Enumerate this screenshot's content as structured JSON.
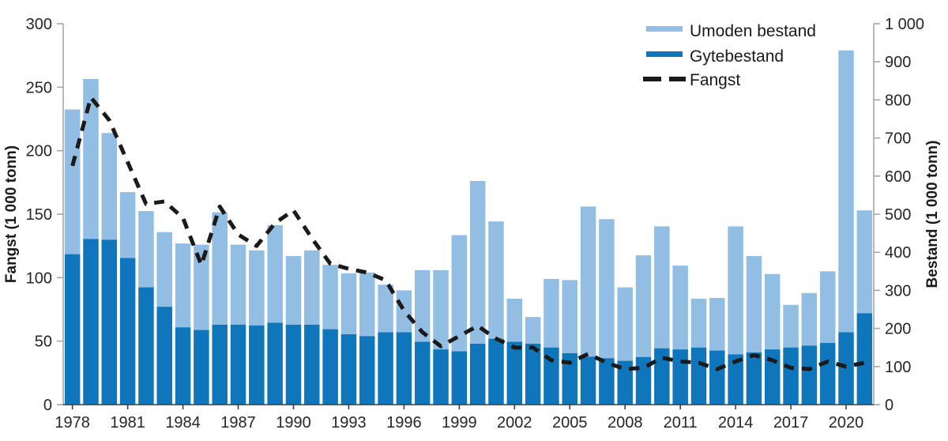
{
  "chart": {
    "left_axis": {
      "title": "Fangst (1 000 tonn)",
      "tick_labels": [
        "0",
        "50",
        "100",
        "150",
        "200",
        "250",
        "300"
      ],
      "tick_values": [
        0,
        50,
        100,
        150,
        200,
        250,
        300
      ],
      "max": 300
    },
    "right_axis": {
      "title": "Bestand (1 000 tonn)",
      "tick_labels": [
        "0",
        "100",
        "200",
        "300",
        "400",
        "500",
        "600",
        "700",
        "800",
        "900",
        "1 000"
      ],
      "tick_values": [
        0,
        100,
        200,
        300,
        400,
        500,
        600,
        700,
        800,
        900,
        1000
      ],
      "max": 1000
    },
    "x_axis": {
      "labeled_years": [
        1978,
        1981,
        1984,
        1987,
        1990,
        1993,
        1996,
        1999,
        2002,
        2005,
        2008,
        2011,
        2014,
        2017,
        2020
      ]
    },
    "legend": {
      "position": "top-right",
      "items": [
        {
          "label": "Umoden bestand",
          "swatch": "bar",
          "color": "#92BEE4"
        },
        {
          "label": "Gytebestand",
          "swatch": "bar",
          "color": "#0F76BC"
        },
        {
          "label": "Fangst",
          "swatch": "dashed-line",
          "color": "#1A1A1A"
        }
      ]
    },
    "colors": {
      "umoden": "#92BEE4",
      "gytebestand": "#0F76BC",
      "fangst_line": "#1A1A1A",
      "axis_line": "#A6A6A6",
      "baseline": "#3D3D3D",
      "text": "#262626",
      "background": "#FFFFFF"
    }
  },
  "chart_data": {
    "type": "bar+line",
    "description_visible": "Stacked bars (stock) on right axis, dashed line (catch) on left axis",
    "years": [
      1978,
      1979,
      1980,
      1981,
      1982,
      1983,
      1984,
      1985,
      1986,
      1987,
      1988,
      1989,
      1990,
      1991,
      1992,
      1993,
      1994,
      1995,
      1996,
      1997,
      1998,
      1999,
      2000,
      2001,
      2002,
      2003,
      2004,
      2005,
      2006,
      2007,
      2008,
      2009,
      2010,
      2011,
      2012,
      2013,
      2014,
      2015,
      2016,
      2017,
      2018,
      2019,
      2020,
      2021
    ],
    "series": [
      {
        "name": "Gytebestand",
        "type": "bar-stack-bottom",
        "axis": "right",
        "unit": "1 000 tonn",
        "values": [
          395,
          435,
          433,
          385,
          308,
          257,
          203,
          196,
          210,
          210,
          208,
          215,
          210,
          210,
          198,
          185,
          180,
          190,
          190,
          165,
          145,
          140,
          160,
          173,
          165,
          160,
          150,
          135,
          126,
          122,
          115,
          125,
          148,
          145,
          150,
          142,
          132,
          137,
          145,
          150,
          155,
          162,
          190,
          240
        ]
      },
      {
        "name": "Umoden bestand",
        "type": "bar-stack-top",
        "axis": "right",
        "unit": "1 000 tonn",
        "values": [
          380,
          420,
          280,
          173,
          200,
          196,
          220,
          224,
          295,
          210,
          197,
          256,
          180,
          195,
          169,
          160,
          167,
          125,
          110,
          188,
          208,
          305,
          427,
          308,
          113,
          70,
          180,
          192,
          394,
          365,
          193,
          267,
          320,
          220,
          128,
          138,
          336,
          253,
          198,
          112,
          138,
          188,
          740,
          270
        ]
      },
      {
        "name": "Fangst",
        "type": "line-dashed",
        "axis": "left",
        "unit": "1 000 tonn",
        "values": [
          188,
          242,
          224,
          191,
          158,
          160,
          147,
          110,
          156,
          134,
          125,
          143,
          153,
          131,
          111,
          107,
          104,
          98,
          74,
          57,
          46,
          54,
          62,
          52,
          45,
          45,
          35,
          33,
          40,
          33,
          28,
          29,
          37,
          34,
          33,
          28,
          34,
          39,
          35,
          29,
          28,
          34,
          30,
          33
        ]
      }
    ],
    "left_ylim": [
      0,
      300
    ],
    "right_ylim": [
      0,
      1000
    ],
    "grid": false,
    "legend_position": "top-right"
  }
}
